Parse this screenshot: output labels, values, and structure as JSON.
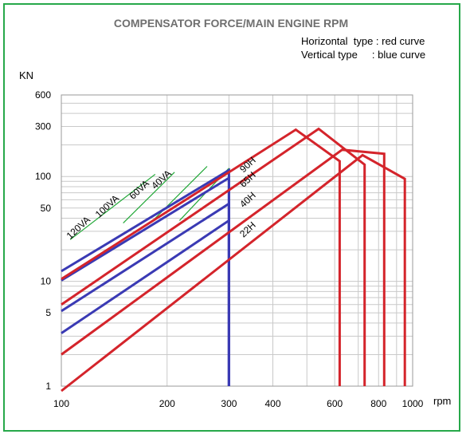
{
  "chart_data": {
    "type": "line",
    "title": "COMPENSATOR FORCE/MAIN ENGINE RPM",
    "legend": {
      "horizontal": "Horizontal  type : red curve",
      "vertical": "Vertical type     : blue curve",
      "placement": "top-right"
    },
    "xlabel": "rpm",
    "ylabel": "KN",
    "x_scale": "log",
    "y_scale": "log",
    "xlim": [
      100,
      1000
    ],
    "ylim": [
      1,
      600
    ],
    "x_ticks": [
      100,
      200,
      300,
      400,
      600,
      800,
      1000
    ],
    "x_tick_labels": [
      "100",
      "200",
      "300",
      "400",
      "600",
      "800",
      "1000"
    ],
    "y_ticks": [
      1,
      5,
      10,
      50,
      100,
      300,
      600
    ],
    "y_tick_labels": [
      "1",
      "5",
      "10",
      "50",
      "100",
      "300",
      "600"
    ],
    "grid": true,
    "series": [
      {
        "name": "120VA",
        "color": "#3a3ab4",
        "points": [
          [
            100,
            12.5
          ],
          [
            300,
            115
          ],
          [
            300,
            1
          ]
        ]
      },
      {
        "name": "100VA",
        "color": "#3a3ab4",
        "points": [
          [
            100,
            10.2
          ],
          [
            300,
            97
          ],
          [
            300,
            1
          ]
        ]
      },
      {
        "name": "60VA",
        "color": "#3a3ab4",
        "points": [
          [
            100,
            5.2
          ],
          [
            300,
            55
          ],
          [
            300,
            1
          ]
        ]
      },
      {
        "name": "40VA",
        "color": "#3a3ab4",
        "points": [
          [
            100,
            3.2
          ],
          [
            300,
            38
          ],
          [
            300,
            1
          ]
        ]
      },
      {
        "name": "90H",
        "color": "#d4242b",
        "points": [
          [
            100,
            10.5
          ],
          [
            465,
            280
          ],
          [
            620,
            140
          ],
          [
            620,
            1
          ]
        ]
      },
      {
        "name": "65H",
        "color": "#d4242b",
        "points": [
          [
            100,
            6
          ],
          [
            540,
            285
          ],
          [
            730,
            130
          ],
          [
            730,
            1
          ]
        ]
      },
      {
        "name": "40H",
        "color": "#d4242b",
        "points": [
          [
            100,
            2
          ],
          [
            630,
            180
          ],
          [
            830,
            165
          ],
          [
            830,
            1
          ]
        ]
      },
      {
        "name": "22H",
        "color": "#d4242b",
        "points": [
          [
            100,
            0.9
          ],
          [
            720,
            160
          ],
          [
            950,
            95
          ],
          [
            950,
            1
          ]
        ]
      }
    ],
    "annotation_lines": [
      {
        "from": [
          106,
          25
        ],
        "to": [
          185,
          105
        ],
        "color": "#22a838"
      },
      {
        "from": [
          150,
          36
        ],
        "to": [
          210,
          110
        ],
        "color": "#22a838"
      },
      {
        "from": [
          185,
          40
        ],
        "to": [
          260,
          125
        ],
        "color": "#22a838"
      },
      {
        "from": [
          217,
          38
        ],
        "to": [
          300,
          120
        ],
        "color": "#22a838"
      }
    ]
  },
  "colors": {
    "frame": "#27a84a",
    "grid": "#c9c9c9",
    "vertical": "#3a3ab4",
    "horizontal": "#d4242b",
    "leader": "#22a838"
  }
}
